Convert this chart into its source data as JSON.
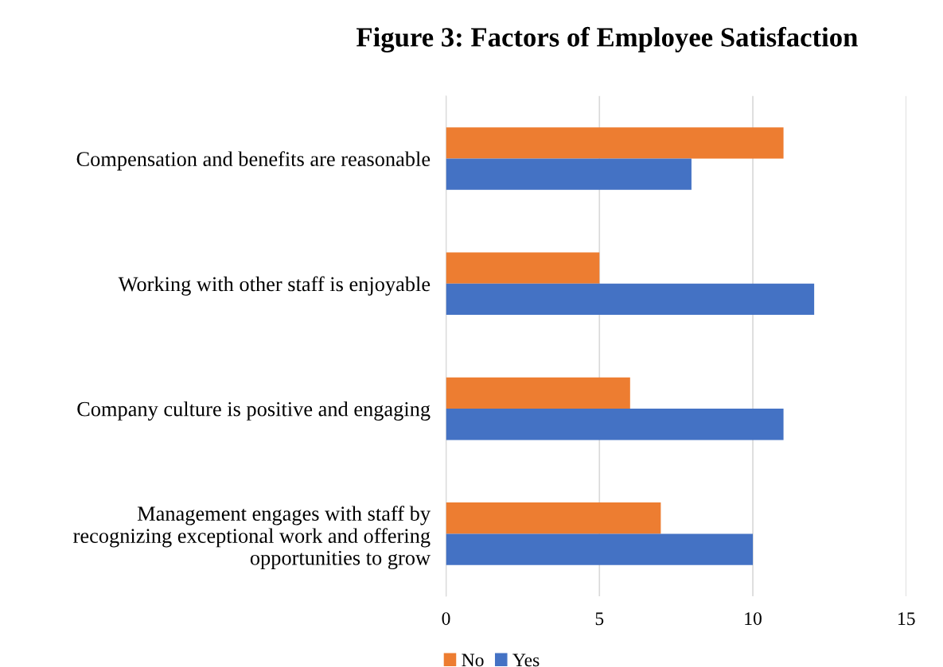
{
  "chart_data": {
    "type": "bar",
    "orientation": "horizontal",
    "title": "Figure 3: Factors of Employee Satisfaction",
    "categories": [
      "Compensation and benefits are reasonable",
      "Working with other staff is enjoyable",
      "Company culture is positive and engaging",
      "Management engages with staff by\nrecognizing exceptional work and offering\nopportunities to grow"
    ],
    "series": [
      {
        "name": "No",
        "color": "#ed7d31",
        "values": [
          11,
          5,
          6,
          7
        ]
      },
      {
        "name": "Yes",
        "color": "#4472c4",
        "values": [
          8,
          12,
          11,
          10
        ]
      }
    ],
    "xlim": [
      0,
      15
    ],
    "xticks": [
      0,
      5,
      10,
      15
    ],
    "grid": "x",
    "legend": "bottom"
  }
}
